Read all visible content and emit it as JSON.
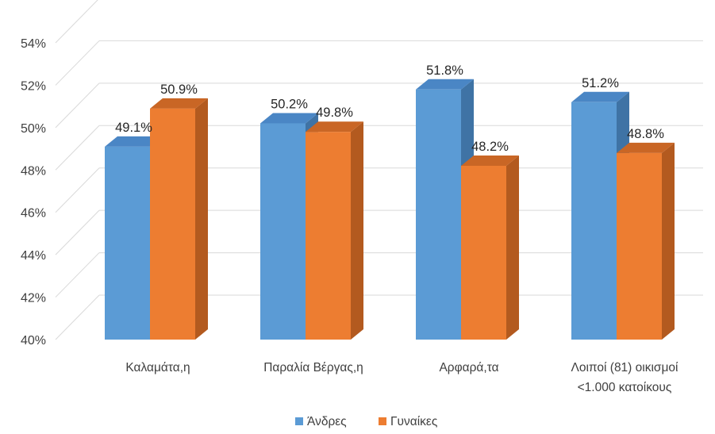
{
  "chart_data": {
    "type": "bar",
    "categories": [
      "Καλαμάτα,η",
      "Παραλία Βέργας,η",
      "Αρφαρά,τα",
      "Λοιποί (81) οικισμοί <1.000 κατοίκους"
    ],
    "category_lines": [
      [
        "Καλαμάτα,η"
      ],
      [
        "Παραλία Βέργας,η"
      ],
      [
        "Αρφαρά,τα"
      ],
      [
        "Λοιποί (81) οικισμοί",
        "<1.000 κατοίκους"
      ]
    ],
    "series": [
      {
        "name": "Άνδρες",
        "values": [
          49.1,
          50.2,
          51.8,
          51.2
        ],
        "labels": [
          "49.1%",
          "50.2%",
          "51.8%",
          "51.2%"
        ],
        "color": "#5b9bd5",
        "side_color": "#3f73a5",
        "top_color": "#4a86c5"
      },
      {
        "name": "Γυναίκες",
        "values": [
          50.9,
          49.8,
          48.2,
          48.8
        ],
        "labels": [
          "50.9%",
          "49.8%",
          "48.2%",
          "48.8%"
        ],
        "color": "#ed7d31",
        "side_color": "#b35a1f",
        "top_color": "#c96625"
      }
    ],
    "yticks": [
      "40%",
      "42%",
      "44%",
      "46%",
      "48%",
      "50%",
      "52%",
      "54%"
    ],
    "ylim": [
      40,
      54
    ],
    "ytick_step": 2,
    "grid": true,
    "legend_position": "bottom",
    "three_d": true
  }
}
